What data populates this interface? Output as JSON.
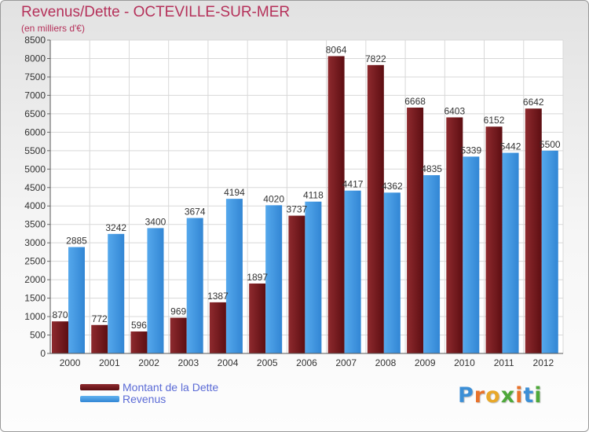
{
  "chart_data": {
    "type": "bar",
    "title": "Revenus/Dette - OCTEVILLE-SUR-MER",
    "subtitle": "(en milliers d'€)",
    "categories": [
      "2000",
      "2001",
      "2002",
      "2003",
      "2004",
      "2005",
      "2006",
      "2007",
      "2008",
      "2009",
      "2010",
      "2011",
      "2012"
    ],
    "series": [
      {
        "name": "Montant de la Dette",
        "color": "#7a1c20",
        "values": [
          870,
          772,
          596,
          969,
          1387,
          1897,
          3737,
          8064,
          7822,
          6668,
          6403,
          6152,
          6642
        ]
      },
      {
        "name": "Revenus",
        "color": "#3f97e0",
        "values": [
          2885,
          3242,
          3400,
          3674,
          4194,
          4020,
          4118,
          4417,
          4362,
          4835,
          5339,
          5442,
          5500
        ]
      }
    ],
    "ylim": [
      0,
      8500
    ],
    "yticks": [
      0,
      500,
      1000,
      1500,
      2000,
      2500,
      3000,
      3500,
      4000,
      4500,
      5000,
      5500,
      6000,
      6500,
      7000,
      7500,
      8000,
      8500
    ],
    "grid": true,
    "legend": "bottom-left"
  },
  "logo": {
    "letters": [
      "P",
      "r",
      "o",
      "x",
      "i",
      "t",
      "i"
    ],
    "colors": [
      "#3c8fd6",
      "#e8722a",
      "#e8a82a",
      "#4ea83a",
      "#e8722a",
      "#3c8fd6",
      "#4ea83a"
    ]
  }
}
